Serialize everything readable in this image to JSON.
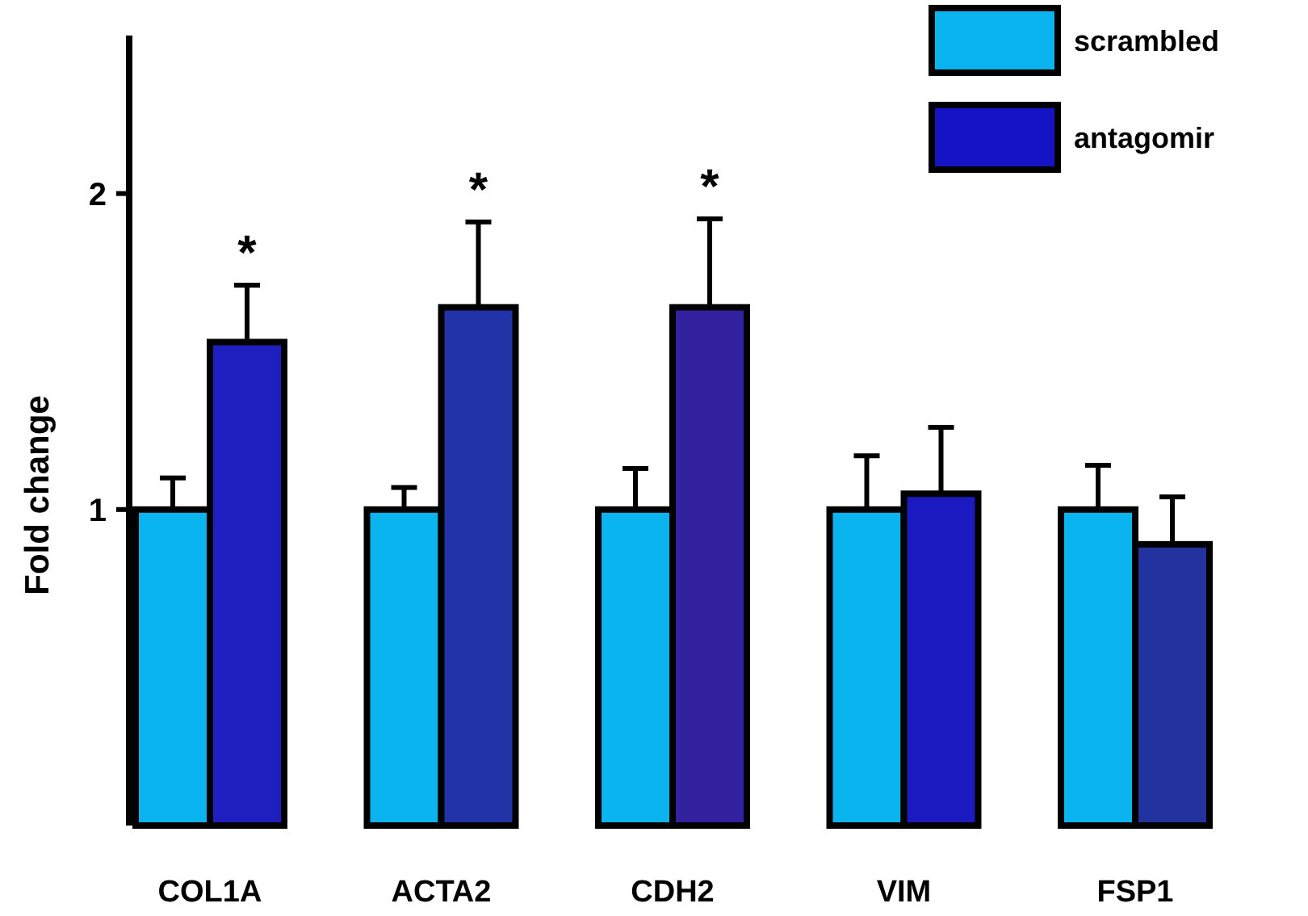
{
  "chart_data": {
    "type": "bar",
    "ylabel": "Fold change",
    "categories": [
      "COL1A",
      "ACTA2",
      "CDH2",
      "VIM",
      "FSP1"
    ],
    "series": [
      {
        "name": "scrambled",
        "color": "#0ab4ee",
        "values": [
          1,
          1,
          1,
          1,
          1
        ],
        "errors": [
          0.1,
          0.07,
          0.13,
          0.17,
          0.14
        ]
      },
      {
        "name": "antagomir",
        "color": "#1414c4",
        "colors": [
          "#1f1fbf",
          "#2233a8",
          "#3322a0",
          "#1a1ac0",
          "#2233a0"
        ],
        "values": [
          1.53,
          1.64,
          1.64,
          1.05,
          0.89
        ],
        "errors": [
          0.18,
          0.27,
          0.28,
          0.21,
          0.15
        ]
      }
    ],
    "ylim": [
      0,
      2.5
    ],
    "yticks": [
      1,
      2
    ],
    "annotations": [
      "*",
      "*",
      "*"
    ],
    "legend": "top right",
    "grid": false
  }
}
